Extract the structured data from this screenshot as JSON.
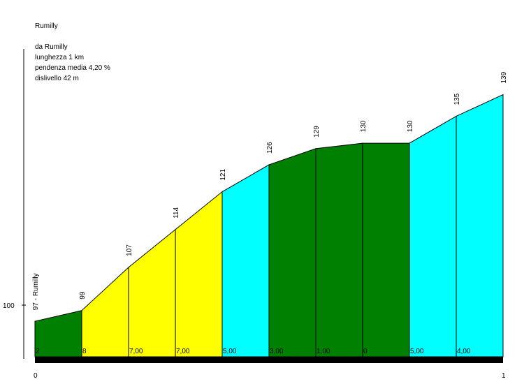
{
  "info": {
    "title": "Rumilly",
    "from": "da Rumilly",
    "length": "lunghezza 1 km",
    "avg_grade": "pendenza media 4,20 %",
    "climb": "dislivello 42 m"
  },
  "chart_data": {
    "type": "area",
    "title": "Rumilly",
    "y_tick": "100",
    "x_tick_labels": [
      "0",
      "1"
    ],
    "points": [
      {
        "x": 0.0,
        "elev": 97,
        "label": "97 - Rumilly"
      },
      {
        "x": 0.1,
        "elev": 99,
        "label": "99"
      },
      {
        "x": 0.2,
        "elev": 107,
        "label": "107"
      },
      {
        "x": 0.3,
        "elev": 114,
        "label": "114"
      },
      {
        "x": 0.4,
        "elev": 121,
        "label": "121"
      },
      {
        "x": 0.5,
        "elev": 126,
        "label": "126"
      },
      {
        "x": 0.6,
        "elev": 129,
        "label": "129"
      },
      {
        "x": 0.7,
        "elev": 130,
        "label": "130"
      },
      {
        "x": 0.8,
        "elev": 130,
        "label": "130"
      },
      {
        "x": 0.9,
        "elev": 135,
        "label": "135"
      },
      {
        "x": 1.0,
        "elev": 139,
        "label": "139"
      }
    ],
    "segments": [
      {
        "grade": "2",
        "color": "#008000"
      },
      {
        "grade": "8",
        "color": "#ffff00"
      },
      {
        "grade": "7,00",
        "color": "#ffff00"
      },
      {
        "grade": "7,00",
        "color": "#ffff00"
      },
      {
        "grade": "5,00",
        "color": "#00ffff"
      },
      {
        "grade": "3,00",
        "color": "#008000"
      },
      {
        "grade": "1,00",
        "color": "#008000"
      },
      {
        "grade": "0",
        "color": "#008000"
      },
      {
        "grade": "5,00",
        "color": "#00ffff"
      },
      {
        "grade": "4,00",
        "color": "#00ffff"
      }
    ],
    "ylim": [
      90,
      140
    ],
    "xlim": [
      0,
      1
    ]
  }
}
